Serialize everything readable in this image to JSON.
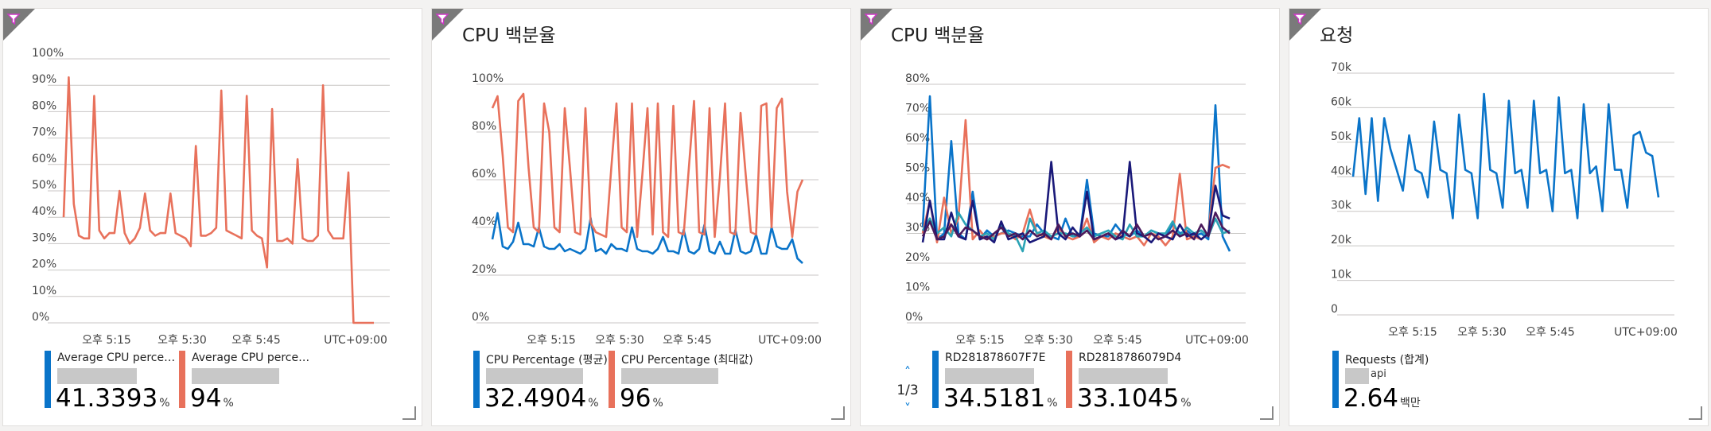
{
  "colors": {
    "blue": "#0a74c9",
    "orange": "#e8715b",
    "teal": "#2ba3b5",
    "navy": "#1a1979",
    "purple": "#4a1a5c"
  },
  "tiles": [
    {
      "title": "",
      "legend": [
        {
          "name": "Average CPU percenta...",
          "value": "41.3393",
          "unit": "%",
          "color": "blue"
        },
        {
          "name": "Average CPU percenta...",
          "value": "94",
          "unit": "%",
          "color": "orange"
        }
      ]
    },
    {
      "title": "CPU 백분율",
      "legend": [
        {
          "name": "CPU Percentage (평균)",
          "value": "32.4904",
          "unit": "%",
          "color": "blue"
        },
        {
          "name": "CPU Percentage (최대값)",
          "value": "96",
          "unit": "%",
          "color": "orange"
        }
      ]
    },
    {
      "title": "CPU 백분율",
      "pager": "1/3",
      "legend": [
        {
          "name": "RD281878607F7E",
          "value": "34.5181",
          "unit": "%",
          "color": "blue"
        },
        {
          "name": "RD2818786079D4",
          "value": "33.1045",
          "unit": "%",
          "color": "orange"
        }
      ]
    },
    {
      "title": "요청",
      "legend": [
        {
          "name": "Requests (합계)",
          "sub": "api",
          "value": "2.64",
          "unit": "백만",
          "color": "blue"
        }
      ]
    }
  ],
  "chart_data": [
    {
      "type": "line",
      "ylim": [
        0,
        100
      ],
      "y_ticks": [
        "0%",
        "10%",
        "20%",
        "30%",
        "40%",
        "50%",
        "60%",
        "70%",
        "80%",
        "90%",
        "100%"
      ],
      "x_ticks": [
        "오후 5:15",
        "오후 5:30",
        "오후 5:45"
      ],
      "timezone": "UTC+09:00",
      "series": [
        {
          "color": "orange",
          "values": [
            40,
            93,
            45,
            33,
            32,
            32,
            86,
            35,
            32,
            34,
            34,
            50,
            34,
            30,
            32,
            36,
            49,
            35,
            33,
            34,
            34,
            49,
            34,
            33,
            32,
            29,
            67,
            33,
            33,
            34,
            36,
            88,
            35,
            34,
            33,
            32,
            86,
            35,
            33,
            32,
            21,
            81,
            31,
            31,
            32,
            30,
            62,
            32,
            31,
            31,
            33,
            90,
            35,
            32,
            32,
            32,
            57,
            0,
            0,
            0,
            0,
            0
          ]
        }
      ]
    },
    {
      "type": "line",
      "ylim": [
        0,
        100
      ],
      "y_ticks": [
        "0%",
        "20%",
        "40%",
        "60%",
        "80%",
        "100%"
      ],
      "x_ticks": [
        "오후 5:15",
        "오후 5:30",
        "오후 5:45"
      ],
      "timezone": "UTC+09:00",
      "series": [
        {
          "name": "CPU Percentage (평균)",
          "color": "blue",
          "values": [
            35,
            46,
            32,
            31,
            34,
            42,
            33,
            33,
            32,
            40,
            32,
            31,
            31,
            33,
            30,
            31,
            30,
            29,
            31,
            44,
            30,
            31,
            29,
            33,
            31,
            31,
            30,
            40,
            31,
            30,
            30,
            29,
            31,
            36,
            30,
            30,
            29,
            39,
            30,
            29,
            31,
            41,
            30,
            29,
            34,
            29,
            29,
            39,
            30,
            29,
            30,
            37,
            29,
            29,
            40,
            32,
            31,
            31,
            35,
            27,
            25
          ]
        },
        {
          "name": "CPU Percentage (최대값)",
          "color": "orange",
          "values": [
            90,
            95,
            70,
            40,
            38,
            93,
            96,
            65,
            40,
            38,
            92,
            80,
            40,
            38,
            90,
            65,
            38,
            37,
            90,
            42,
            38,
            37,
            36,
            65,
            92,
            40,
            38,
            92,
            36,
            62,
            90,
            37,
            92,
            38,
            36,
            91,
            38,
            37,
            65,
            93,
            38,
            37,
            90,
            36,
            61,
            92,
            38,
            37,
            88,
            62,
            38,
            37,
            91,
            92,
            40,
            90,
            94,
            55,
            36,
            55,
            60
          ]
        }
      ]
    },
    {
      "type": "line",
      "ylim": [
        0,
        80
      ],
      "y_ticks": [
        "0%",
        "10%",
        "20%",
        "30%",
        "40%",
        "50%",
        "60%",
        "70%",
        "80%"
      ],
      "x_ticks": [
        "오후 5:15",
        "오후 5:30",
        "오후 5:45"
      ],
      "timezone": "UTC+09:00",
      "series": [
        {
          "name": "RD281878607F7E",
          "color": "blue",
          "values": [
            32,
            76,
            28,
            30,
            61,
            30,
            28,
            44,
            28,
            31,
            29,
            30,
            31,
            30,
            29,
            29,
            33,
            30,
            29,
            28,
            35,
            29,
            29,
            48,
            30,
            29,
            29,
            33,
            30,
            29,
            31,
            29,
            31,
            30,
            29,
            33,
            30,
            31,
            29,
            30,
            28,
            73,
            29,
            24
          ]
        },
        {
          "name": "RD2818786079D4",
          "color": "orange",
          "values": [
            30,
            41,
            27,
            42,
            30,
            35,
            68,
            28,
            31,
            28,
            29,
            30,
            30,
            28,
            30,
            38,
            30,
            29,
            28,
            32,
            29,
            28,
            29,
            35,
            27,
            29,
            28,
            30,
            29,
            28,
            29,
            26,
            30,
            29,
            26,
            29,
            50,
            28,
            29,
            28,
            30,
            52,
            53,
            52
          ]
        },
        {
          "color": "teal",
          "values": [
            31,
            35,
            30,
            32,
            29,
            37,
            33,
            31,
            29,
            30,
            28,
            33,
            30,
            29,
            24,
            35,
            30,
            31,
            29,
            30,
            30,
            29,
            30,
            32,
            29,
            30,
            31,
            29,
            28,
            33,
            29,
            29,
            31,
            30,
            30,
            34,
            29,
            32,
            30,
            31,
            29,
            35,
            30,
            31
          ]
        },
        {
          "color": "navy",
          "values": [
            27,
            41,
            28,
            28,
            37,
            29,
            28,
            41,
            28,
            29,
            27,
            34,
            28,
            29,
            30,
            27,
            28,
            29,
            54,
            30,
            28,
            32,
            29,
            44,
            28,
            29,
            30,
            28,
            29,
            54,
            30,
            29,
            27,
            30,
            29,
            28,
            33,
            29,
            30,
            28,
            30,
            46,
            36,
            35
          ]
        },
        {
          "color": "purple",
          "values": [
            29,
            34,
            28,
            29,
            33,
            29,
            32,
            31,
            29,
            28,
            30,
            32,
            29,
            30,
            28,
            31,
            29,
            30,
            28,
            33,
            29,
            30,
            29,
            31,
            28,
            29,
            30,
            28,
            31,
            29,
            33,
            29,
            30,
            28,
            29,
            31,
            29,
            30,
            28,
            33,
            29,
            37,
            32,
            30
          ]
        }
      ]
    },
    {
      "type": "line",
      "ylim": [
        0,
        70000
      ],
      "y_ticks": [
        "0",
        "10k",
        "20k",
        "30k",
        "40k",
        "50k",
        "60k",
        "70k"
      ],
      "x_ticks": [
        "오후 5:15",
        "오후 5:30",
        "오후 5:45"
      ],
      "timezone": "UTC+09:00",
      "series": [
        {
          "name": "Requests (합계)",
          "color": "blue",
          "values": [
            40000,
            57000,
            35000,
            57000,
            33000,
            57000,
            48000,
            42000,
            36000,
            52000,
            42000,
            41000,
            34000,
            56000,
            42000,
            41000,
            28000,
            58000,
            42000,
            41000,
            28000,
            64000,
            42000,
            41000,
            31000,
            62000,
            41000,
            42000,
            31000,
            62000,
            41000,
            42000,
            30000,
            63000,
            41000,
            42000,
            28000,
            61000,
            41000,
            43000,
            30000,
            61000,
            42000,
            42000,
            31000,
            52000,
            53000,
            47000,
            46000,
            34000
          ]
        }
      ]
    }
  ]
}
